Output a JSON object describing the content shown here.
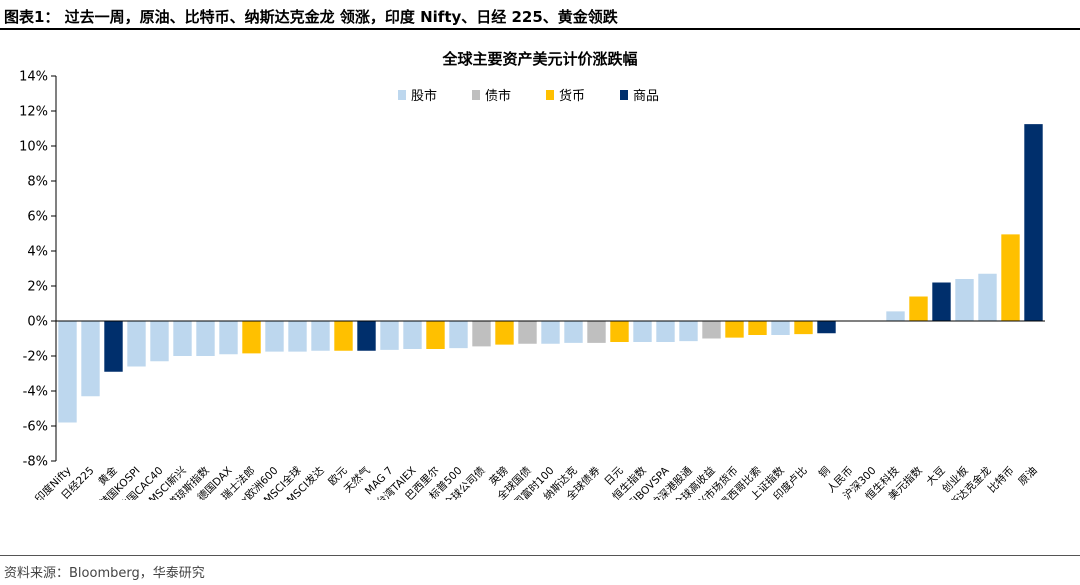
{
  "header": {
    "title": "图表1：  过去一周，原油、比特币、纳斯达克金龙 领涨，印度 Nifty、日经 225、黄金领跌"
  },
  "footer": {
    "source": "资料来源：Bloomberg，华泰研究"
  },
  "chart_data": {
    "type": "bar",
    "title": "全球主要资产美元计价涨跌幅",
    "xlabel": "",
    "ylabel": "",
    "ylim": [
      -8,
      14
    ],
    "yticks": [
      -8,
      -6,
      -4,
      -2,
      0,
      2,
      4,
      6,
      8,
      10,
      12,
      14
    ],
    "ytick_format": "percent",
    "grid": false,
    "legend_position": "top",
    "legend": [
      {
        "name": "股市",
        "color": "#bdd7ee"
      },
      {
        "name": "债市",
        "color": "#bfbfbf"
      },
      {
        "name": "货币",
        "color": "#ffc000"
      },
      {
        "name": "商品",
        "color": "#002f6c"
      }
    ],
    "categories": [
      "印度Nifty",
      "日经225",
      "黄金",
      "韩国KOSPI",
      "法国CAC40",
      "MSCI新兴",
      "道琼斯指数",
      "德国DAX",
      "瑞士法郎",
      "Stoxx欧洲600",
      "MSCI全球",
      "MSCI发达",
      "欧元",
      "天然气",
      "MAG 7",
      "台湾TAIEX",
      "巴西里尔",
      "标普500",
      "全球公司债",
      "英镑",
      "全球国债",
      "英国富时100",
      "纳斯达克",
      "全球债券",
      "日元",
      "恒生指数",
      "巴西IBOVSPA",
      "沪深港股通",
      "全球高收益",
      "新兴市场货币",
      "墨西哥比索",
      "上证指数",
      "印度卢比",
      "铜",
      "人民币",
      "沪深300",
      "恒生科技",
      "美元指数",
      "大豆",
      "创业板",
      "纳斯达克金龙",
      "比特币",
      "原油"
    ],
    "values": [
      -5.8,
      -4.3,
      -2.9,
      -2.6,
      -2.3,
      -2.0,
      -2.0,
      -1.9,
      -1.85,
      -1.75,
      -1.75,
      -1.7,
      -1.7,
      -1.7,
      -1.65,
      -1.6,
      -1.6,
      -1.55,
      -1.45,
      -1.35,
      -1.3,
      -1.3,
      -1.25,
      -1.25,
      -1.2,
      -1.2,
      -1.2,
      -1.15,
      -1.0,
      -0.95,
      -0.8,
      -0.8,
      -0.75,
      -0.7,
      0.0,
      0.0,
      0.55,
      1.4,
      2.2,
      2.4,
      2.7,
      4.95,
      11.25
    ],
    "groups": [
      "股市",
      "股市",
      "商品",
      "股市",
      "股市",
      "股市",
      "股市",
      "股市",
      "货币",
      "股市",
      "股市",
      "股市",
      "货币",
      "商品",
      "股市",
      "股市",
      "货币",
      "股市",
      "债市",
      "货币",
      "债市",
      "股市",
      "股市",
      "债市",
      "货币",
      "股市",
      "股市",
      "股市",
      "债市",
      "货币",
      "货币",
      "股市",
      "货币",
      "商品",
      "货币",
      "股市",
      "股市",
      "货币",
      "商品",
      "股市",
      "股市",
      "货币",
      "商品"
    ]
  }
}
